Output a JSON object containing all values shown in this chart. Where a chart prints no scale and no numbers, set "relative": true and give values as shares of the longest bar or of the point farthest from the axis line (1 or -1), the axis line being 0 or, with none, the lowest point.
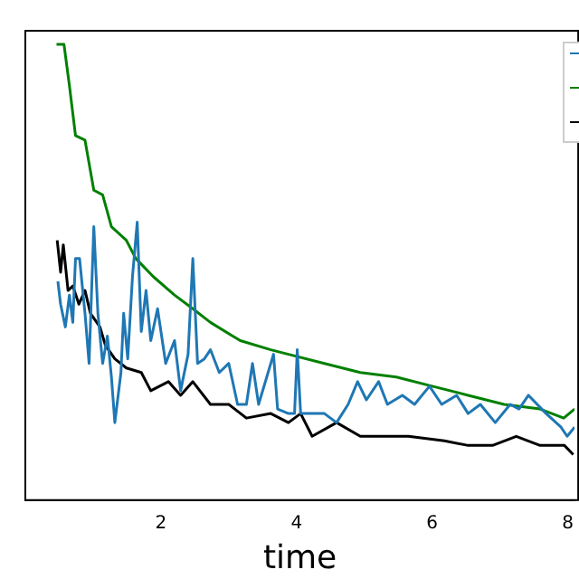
{
  "chart_data": {
    "type": "line",
    "xlabel": "time",
    "relative": true,
    "xlim": [
      0,
      8.1
    ],
    "xticks": [
      2,
      4,
      6,
      8
    ],
    "grid": false,
    "marker": "none",
    "line_style": "solid",
    "series": [
      {
        "color": "#1f77b4",
        "x": [
          0.48,
          0.52,
          0.59,
          0.65,
          0.7,
          0.74,
          0.8,
          0.88,
          0.94,
          1.01,
          1.07,
          1.14,
          1.21,
          1.27,
          1.32,
          1.41,
          1.45,
          1.51,
          1.58,
          1.65,
          1.71,
          1.78,
          1.85,
          1.95,
          2.07,
          2.2,
          2.29,
          2.4,
          2.47,
          2.54,
          2.64,
          2.73,
          2.86,
          3.0,
          3.13,
          3.26,
          3.35,
          3.44,
          3.66,
          3.72,
          3.88,
          3.97,
          4.01,
          4.06,
          4.41,
          4.59,
          4.76,
          4.9,
          5.03,
          5.21,
          5.34,
          5.56,
          5.74,
          5.96,
          6.14,
          6.36,
          6.53,
          6.71,
          6.93,
          7.15,
          7.28,
          7.42,
          7.68,
          7.9,
          7.99,
          8.1
        ],
        "values": [
          0.48,
          0.43,
          0.38,
          0.45,
          0.39,
          0.53,
          0.53,
          0.41,
          0.3,
          0.6,
          0.41,
          0.3,
          0.36,
          0.27,
          0.17,
          0.28,
          0.41,
          0.31,
          0.49,
          0.61,
          0.37,
          0.46,
          0.35,
          0.42,
          0.3,
          0.35,
          0.24,
          0.32,
          0.53,
          0.3,
          0.31,
          0.33,
          0.28,
          0.3,
          0.21,
          0.21,
          0.3,
          0.21,
          0.32,
          0.2,
          0.19,
          0.19,
          0.33,
          0.19,
          0.19,
          0.17,
          0.21,
          0.26,
          0.22,
          0.26,
          0.21,
          0.23,
          0.21,
          0.25,
          0.21,
          0.23,
          0.19,
          0.21,
          0.17,
          0.21,
          0.2,
          0.23,
          0.19,
          0.16,
          0.14,
          0.16
        ]
      },
      {
        "color": "#008000",
        "x": [
          0.46,
          0.57,
          0.65,
          0.74,
          0.88,
          1.01,
          1.14,
          1.27,
          1.49,
          1.63,
          1.89,
          2.2,
          2.47,
          2.73,
          3.17,
          3.62,
          3.88,
          4.41,
          4.94,
          5.47,
          6.0,
          6.53,
          7.06,
          7.59,
          7.94,
          8.1
        ],
        "values": [
          1.0,
          1.0,
          0.91,
          0.8,
          0.79,
          0.68,
          0.67,
          0.6,
          0.57,
          0.53,
          0.49,
          0.45,
          0.42,
          0.39,
          0.35,
          0.33,
          0.32,
          0.3,
          0.28,
          0.27,
          0.25,
          0.23,
          0.21,
          0.2,
          0.18,
          0.2
        ]
      },
      {
        "color": "#000000",
        "x": [
          0.47,
          0.52,
          0.56,
          0.63,
          0.7,
          0.79,
          0.88,
          0.96,
          1.1,
          1.18,
          1.32,
          1.49,
          1.71,
          1.85,
          2.11,
          2.29,
          2.47,
          2.73,
          3.0,
          3.26,
          3.62,
          3.88,
          4.06,
          4.23,
          4.59,
          4.94,
          5.29,
          5.65,
          6.18,
          6.53,
          6.89,
          7.24,
          7.59,
          7.95,
          8.08
        ],
        "values": [
          0.57,
          0.5,
          0.56,
          0.46,
          0.47,
          0.43,
          0.46,
          0.41,
          0.38,
          0.34,
          0.31,
          0.29,
          0.28,
          0.24,
          0.26,
          0.23,
          0.26,
          0.21,
          0.21,
          0.18,
          0.19,
          0.17,
          0.19,
          0.14,
          0.17,
          0.14,
          0.14,
          0.14,
          0.13,
          0.12,
          0.12,
          0.14,
          0.12,
          0.12,
          0.1
        ]
      }
    ]
  }
}
